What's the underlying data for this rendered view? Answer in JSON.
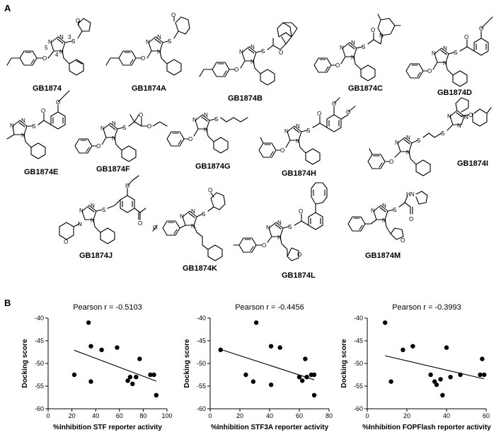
{
  "panels": {
    "a": "A",
    "b": "B"
  },
  "compounds": [
    {
      "name": "GB1874",
      "atoms": [
        "N",
        "N",
        "N",
        "O",
        "S",
        "O",
        "3",
        "4",
        "5"
      ]
    },
    {
      "name": "GB1874A",
      "atoms": [
        "N",
        "N",
        "N",
        "O",
        "S",
        "O"
      ]
    },
    {
      "name": "GB1874B",
      "atoms": [
        "N",
        "N",
        "N",
        "O",
        "S",
        "O"
      ]
    },
    {
      "name": "GB1874C",
      "atoms": [
        "N",
        "N",
        "N",
        "O",
        "S",
        "O",
        "N"
      ]
    },
    {
      "name": "GB1874D",
      "atoms": [
        "N",
        "N",
        "N",
        "O",
        "S",
        "O",
        "O"
      ]
    },
    {
      "name": "GB1874E",
      "atoms": [
        "N",
        "N",
        "N",
        "S",
        "O",
        "O"
      ]
    },
    {
      "name": "GB1874F",
      "atoms": [
        "N",
        "N",
        "N",
        "O",
        "S",
        "O",
        "O"
      ]
    },
    {
      "name": "GB1874G",
      "atoms": [
        "N",
        "N",
        "N",
        "O",
        "S"
      ]
    },
    {
      "name": "GB1874H",
      "atoms": [
        "N",
        "N",
        "N",
        "O",
        "S",
        "O",
        "O",
        "O"
      ]
    },
    {
      "name": "GB1874I",
      "atoms": [
        "N",
        "N",
        "N",
        "O",
        "S",
        "S",
        "N",
        "N",
        "N",
        "O"
      ]
    },
    {
      "name": "GB1874J",
      "atoms": [
        "N",
        "N",
        "N",
        "N",
        "O",
        "S",
        "O",
        "O"
      ]
    },
    {
      "name": "GB1874K",
      "atoms": [
        "N",
        "N",
        "N",
        "O",
        "S",
        "O"
      ]
    },
    {
      "name": "GB1874L",
      "atoms": [
        "N",
        "N",
        "N",
        "O",
        "S",
        "O",
        "O"
      ]
    },
    {
      "name": "GB1874M",
      "atoms": [
        "N",
        "N",
        "N",
        "S",
        "O",
        "HN",
        "O"
      ]
    }
  ],
  "chart_data": [
    {
      "type": "scatter",
      "title": "Pearson r = -0.5103",
      "xlabel": "%Inhibition STF reporter activity",
      "ylabel": "Docking score",
      "xlim": [
        0,
        100
      ],
      "ylim": [
        -60,
        -40
      ],
      "xticks": [
        "0",
        "20",
        "40",
        "60",
        "80",
        "100"
      ],
      "yticks": [
        "-40",
        "-45",
        "-50",
        "-55",
        "-60"
      ],
      "grid": false,
      "points": [
        [
          22,
          -52.5
        ],
        [
          34,
          -41
        ],
        [
          36,
          -46.2
        ],
        [
          36,
          -54
        ],
        [
          45,
          -47
        ],
        [
          58,
          -46.5
        ],
        [
          67,
          -53.8
        ],
        [
          69,
          -53
        ],
        [
          71,
          -54.5
        ],
        [
          74,
          -53
        ],
        [
          77,
          -49
        ],
        [
          86,
          -52.5
        ],
        [
          89,
          -52.5
        ],
        [
          91,
          -57
        ]
      ],
      "fit": [
        [
          22,
          -47.1
        ],
        [
          91,
          -53.9
        ]
      ]
    },
    {
      "type": "scatter",
      "title": "Pearson r = -0.4456",
      "xlabel": "%Inhibition STF3A reporter activity",
      "ylabel": "Docking score",
      "xlim": [
        0,
        80
      ],
      "ylim": [
        -60,
        -40
      ],
      "xticks": [
        "0",
        "20",
        "40",
        "60",
        "80"
      ],
      "yticks": [
        "-40",
        "-45",
        "-50",
        "-55",
        "-60"
      ],
      "grid": false,
      "points": [
        [
          7,
          -47
        ],
        [
          24,
          -52.5
        ],
        [
          29,
          -54
        ],
        [
          31,
          -41
        ],
        [
          41,
          -46.2
        ],
        [
          41,
          -54.7
        ],
        [
          47,
          -46.5
        ],
        [
          60,
          -53
        ],
        [
          62,
          -53.8
        ],
        [
          64,
          -49
        ],
        [
          65,
          -53
        ],
        [
          68,
          -52.5
        ],
        [
          70,
          -52.5
        ],
        [
          70,
          -57
        ]
      ],
      "fit": [
        [
          7,
          -46.9
        ],
        [
          70,
          -53.6
        ]
      ]
    },
    {
      "type": "scatter",
      "title": "Pearson r = -0.3993",
      "xlabel": "%Inhibition FOPFlash reporter activity",
      "ylabel": "Docking score",
      "xlim": [
        0,
        60
      ],
      "ylim": [
        -60,
        -40
      ],
      "xticks": [
        "0",
        "20",
        "40",
        "60"
      ],
      "yticks": [
        "-40",
        "-45",
        "-50",
        "-55",
        "-60"
      ],
      "grid": false,
      "points": [
        [
          9,
          -41
        ],
        [
          12,
          -54
        ],
        [
          18,
          -47
        ],
        [
          23,
          -46.2
        ],
        [
          32,
          -52.5
        ],
        [
          34,
          -54
        ],
        [
          35,
          -54.7
        ],
        [
          37,
          -53.5
        ],
        [
          38,
          -57
        ],
        [
          40,
          -46.5
        ],
        [
          42,
          -53
        ],
        [
          47,
          -52.5
        ],
        [
          57,
          -52.5
        ],
        [
          58,
          -49
        ],
        [
          59,
          -52.5
        ]
      ],
      "fit": [
        [
          9,
          -48.3
        ],
        [
          59,
          -53.4
        ]
      ]
    }
  ]
}
